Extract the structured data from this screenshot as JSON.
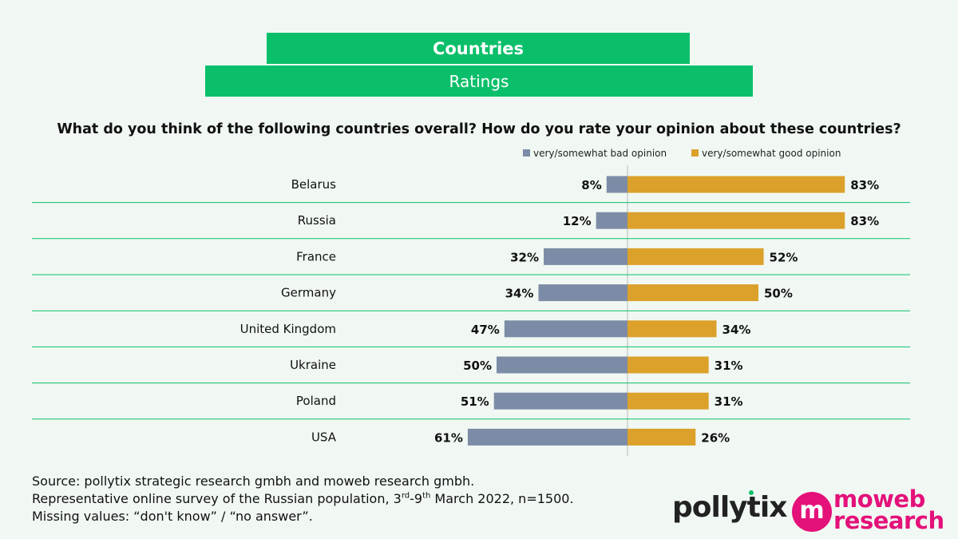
{
  "header": {
    "title": "Countries",
    "subtitle": "Ratings"
  },
  "question": "What do you think of the following countries overall? How do you rate your opinion about these countries?",
  "colors": {
    "banner": "#0bbf6a",
    "bad": "#7d8ca6",
    "good": "#dba12b",
    "divider": "#0bbf6a",
    "moweb": "#e4117a"
  },
  "chart_data": {
    "type": "bar",
    "orientation": "horizontal-diverging",
    "categories": [
      "Belarus",
      "Russia",
      "France",
      "Germany",
      "United Kingdom",
      "Ukraine",
      "Poland",
      "USA"
    ],
    "series": [
      {
        "name": "very/somewhat bad opinion",
        "values": [
          8,
          12,
          32,
          34,
          47,
          50,
          51,
          61
        ]
      },
      {
        "name": "very/somewhat good opinion",
        "values": [
          83,
          83,
          52,
          50,
          34,
          31,
          31,
          26
        ]
      }
    ],
    "value_suffix": "%",
    "legend_position": "top"
  },
  "footer": {
    "line1": "Source: pollytix strategic research gmbh and moweb research gmbh.",
    "line2_a": "Representative online survey of the Russian population, 3",
    "line2_sup1": "rd",
    "line2_b": "-9",
    "line2_sup2": "th",
    "line2_c": " March 2022, n=1500.",
    "line3": "Missing values: “don't know” / “no answer”."
  },
  "logos": {
    "pollytix": "pollytix",
    "moweb_mark": "m",
    "moweb_line1": "moweb",
    "moweb_line2": "research"
  }
}
